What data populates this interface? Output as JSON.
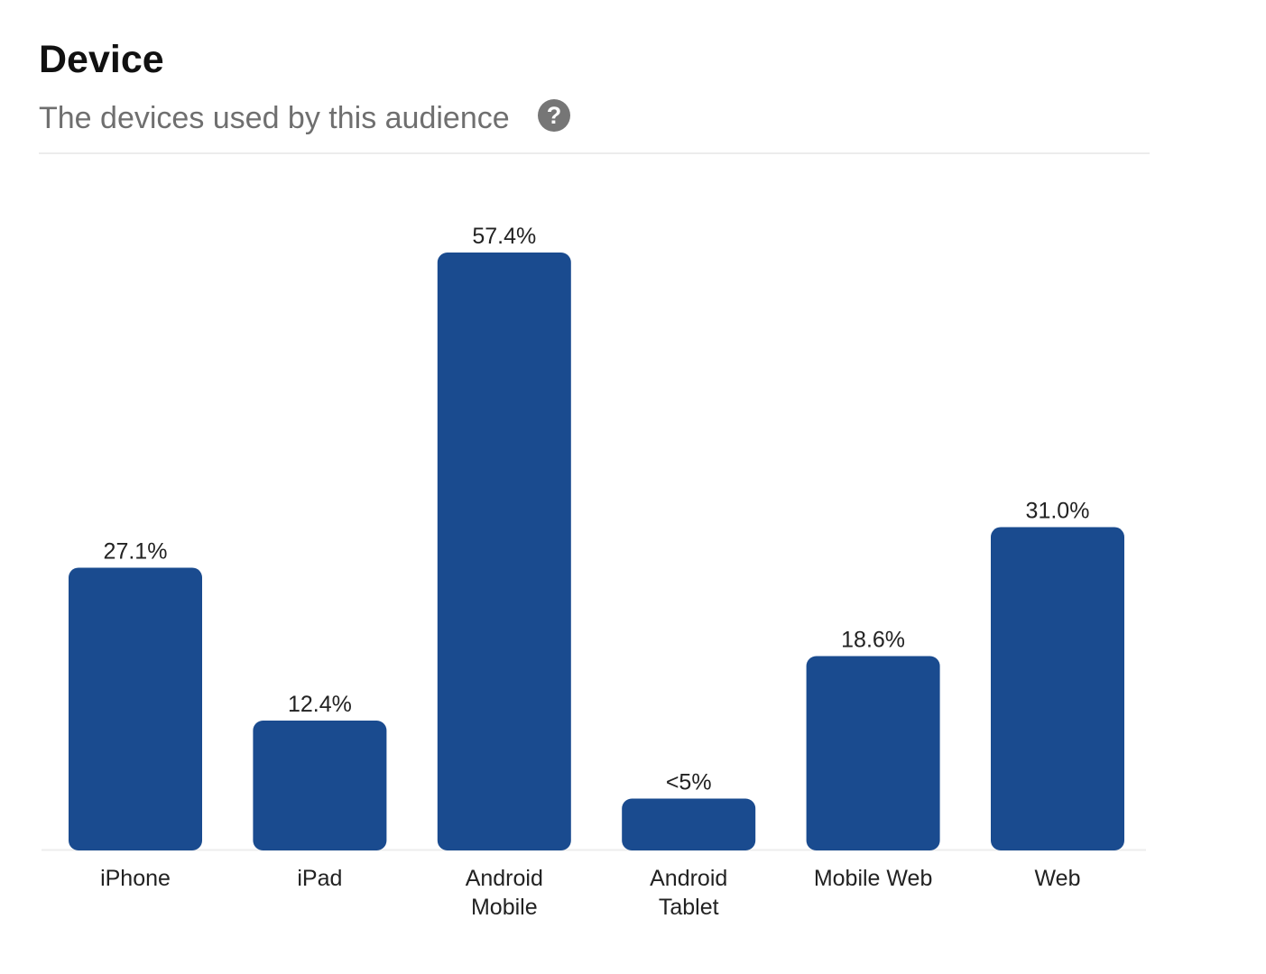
{
  "header": {
    "title": "Device",
    "subtitle": "The devices used by this audience",
    "help_icon": "question-circle-icon"
  },
  "chart_data": {
    "type": "bar",
    "categories": [
      "iPhone",
      "iPad",
      "Android Mobile",
      "Android Tablet",
      "Mobile Web",
      "Web"
    ],
    "category_lines": [
      [
        "iPhone"
      ],
      [
        "iPad"
      ],
      [
        "Android",
        "Mobile"
      ],
      [
        "Android",
        "Tablet"
      ],
      [
        "Mobile Web"
      ],
      [
        "Web"
      ]
    ],
    "values": [
      27.1,
      12.4,
      57.4,
      4.9,
      18.6,
      31.0
    ],
    "data_labels": [
      "27.1%",
      "12.4%",
      "57.4%",
      "<5%",
      "18.6%",
      "31.0%"
    ],
    "title": "Device",
    "xlabel": "",
    "ylabel": "",
    "ylim": [
      0,
      57.4
    ],
    "grid": false,
    "bar_color": "#1a4b8f"
  }
}
